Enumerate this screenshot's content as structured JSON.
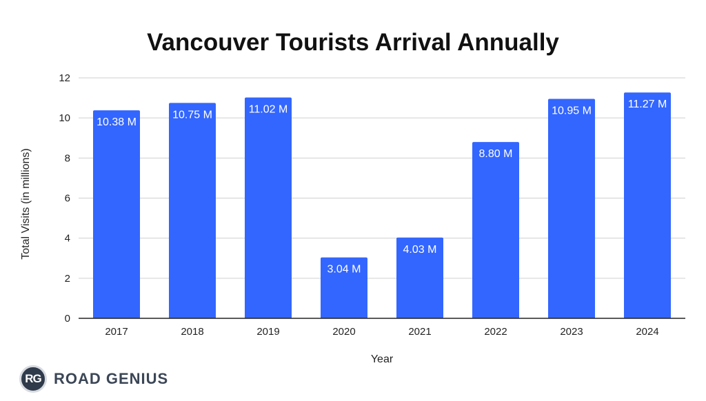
{
  "chart_data": {
    "type": "bar",
    "title": "Vancouver Tourists Arrival Annually",
    "xlabel": "Year",
    "ylabel": "Total Visits (in millions)",
    "categories": [
      "2017",
      "2018",
      "2019",
      "2020",
      "2021",
      "2022",
      "2023",
      "2024"
    ],
    "values": [
      10.38,
      10.75,
      11.02,
      3.04,
      4.03,
      8.8,
      10.95,
      11.27
    ],
    "data_labels": [
      "10.38 M",
      "10.75 M",
      "11.02 M",
      "3.04 M",
      "4.03 M",
      "8.80 M",
      "10.95 M",
      "11.27 M"
    ],
    "ylim": [
      0,
      12
    ],
    "yticks": [
      "0",
      "2",
      "4",
      "6",
      "8",
      "10",
      "12"
    ],
    "grid": true,
    "bar_color": "#3366ff"
  },
  "branding": {
    "badge": "RG",
    "name": "ROAD GENIUS"
  }
}
